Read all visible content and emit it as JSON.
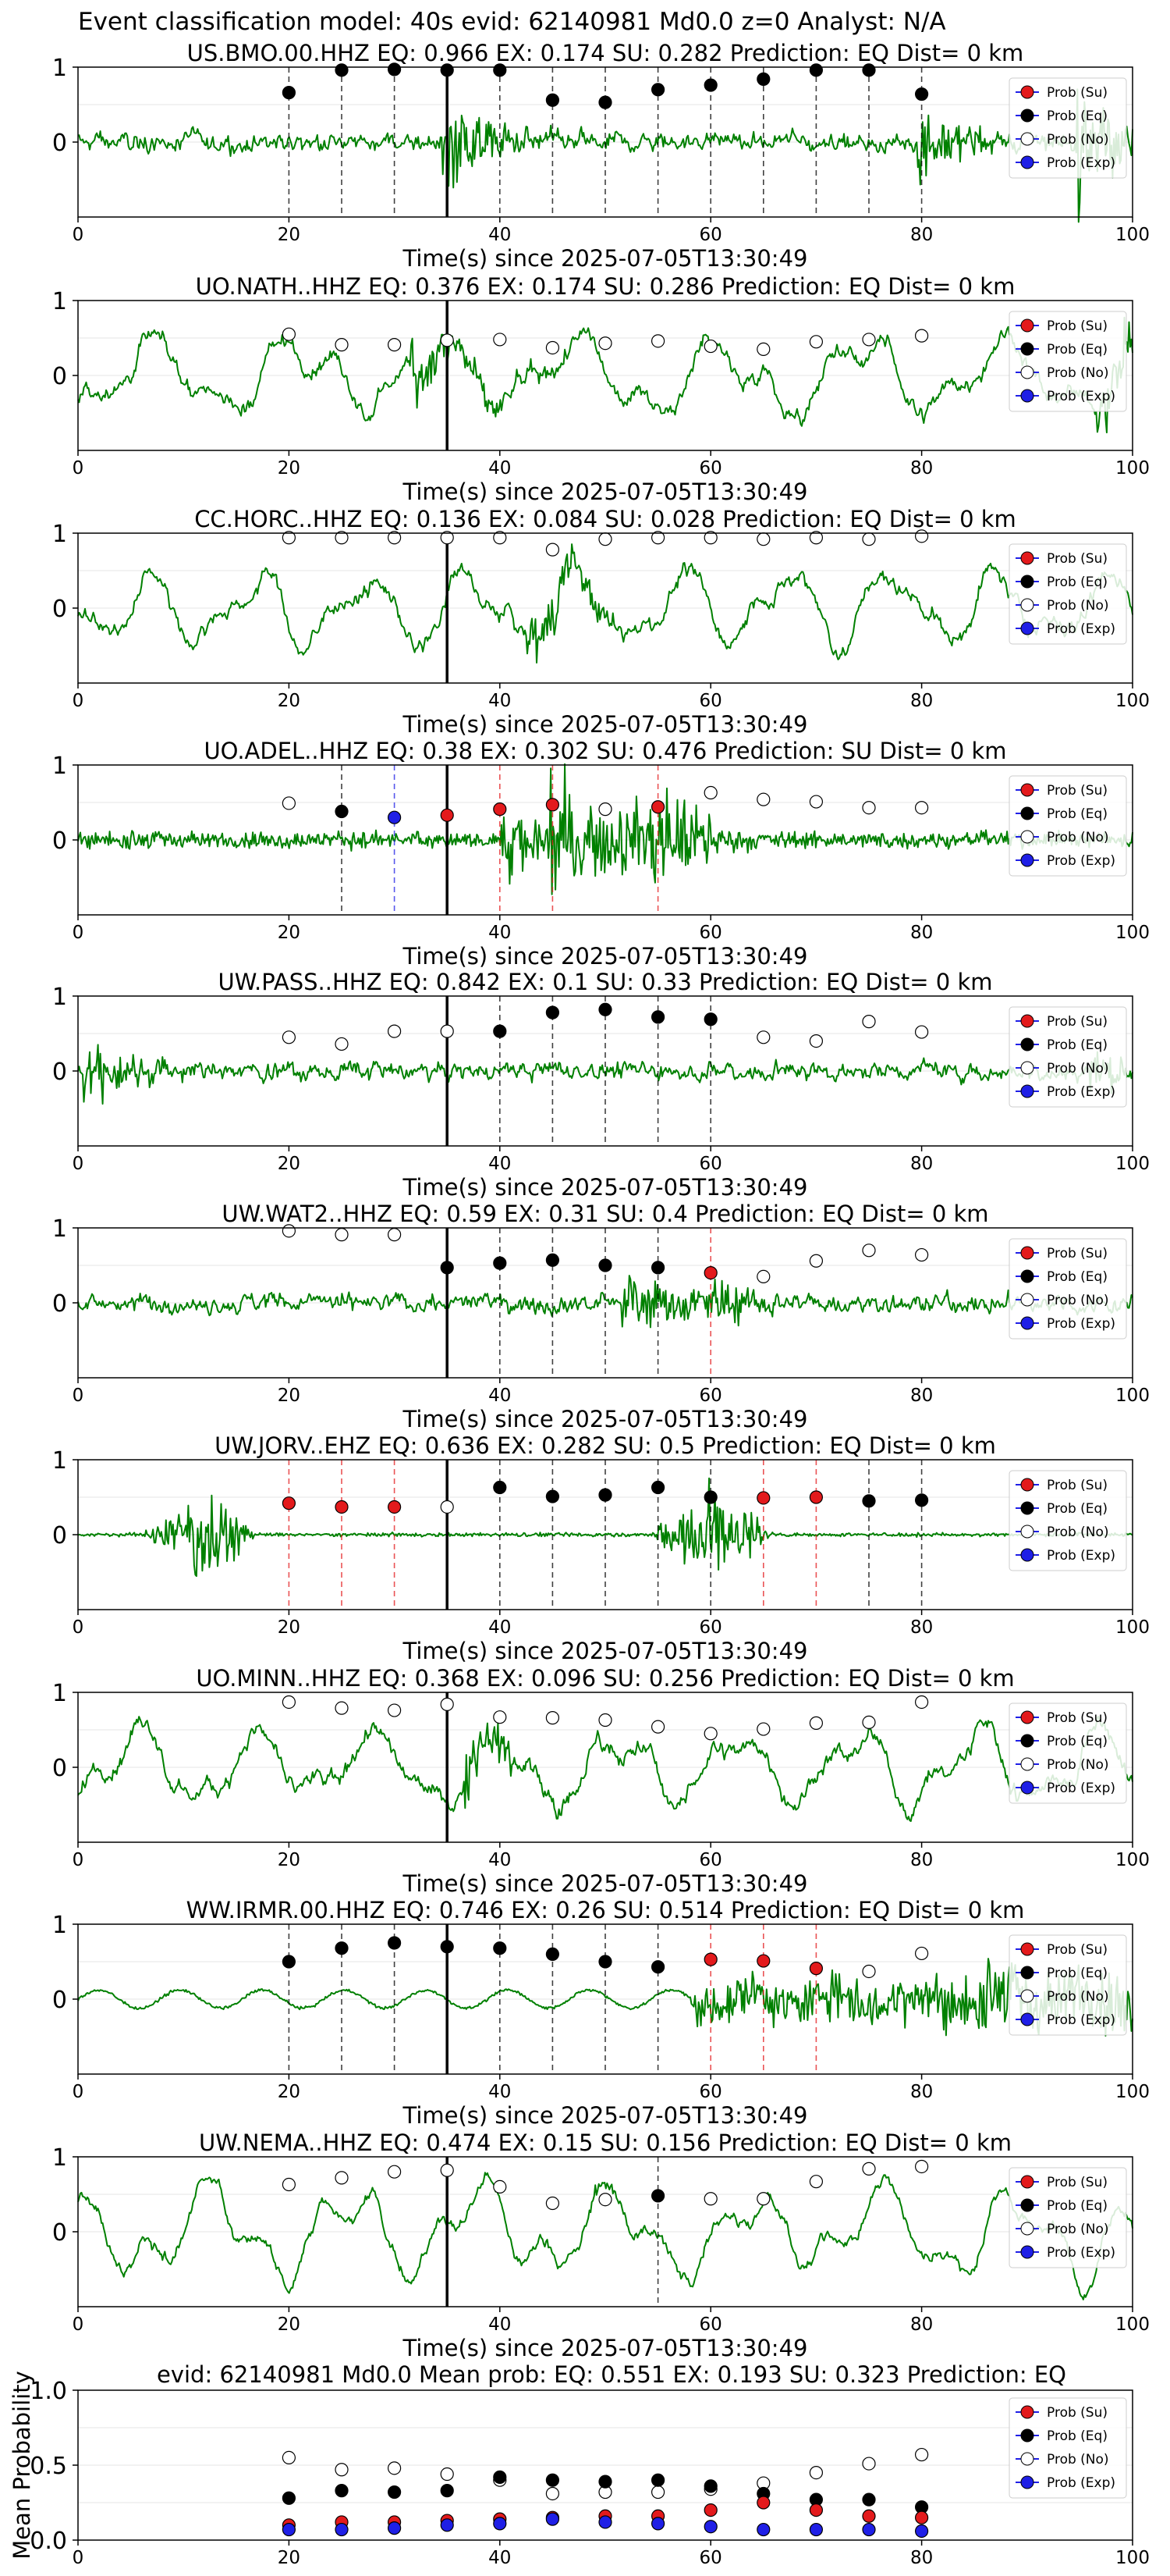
{
  "header": "Event classification model: 40s evid: 62140981 Md0.0 z=0 Analyst: N/A",
  "xlabel": "Time(s) since 2025-07-05T13:30:49",
  "legend": [
    "Prob (Su)",
    "Prob (Eq)",
    "Prob (No)",
    "Prob (Exp)"
  ],
  "colors": {
    "waveform": "#008000",
    "su": "#e31a1c",
    "eq": "#000000",
    "no": "#ffffff",
    "exp": "#1f1fe6",
    "origin_line": "#000000"
  },
  "chart_data": [
    {
      "type": "line",
      "title": "US.BMO.00.HHZ   EQ: 0.966  EX: 0.174  SU: 0.282   Prediction: EQ    Dist= 0 km",
      "xlim": [
        0,
        100
      ],
      "ylim": [
        -1,
        1
      ],
      "xticks": [
        0,
        20,
        40,
        60,
        80,
        100
      ],
      "yticks": [
        0,
        1
      ],
      "origin_time": 35,
      "waveform_style": "noisy",
      "waveform_bursts": [
        [
          35,
          0.9
        ],
        [
          80,
          0.8
        ],
        [
          95,
          1.2
        ]
      ],
      "prob_points": [
        {
          "x": 20,
          "y": 0.66,
          "cls": "eq"
        },
        {
          "x": 25,
          "y": 0.96,
          "cls": "eq"
        },
        {
          "x": 30,
          "y": 0.97,
          "cls": "eq"
        },
        {
          "x": 35,
          "y": 0.96,
          "cls": "eq"
        },
        {
          "x": 40,
          "y": 0.96,
          "cls": "eq"
        },
        {
          "x": 45,
          "y": 0.56,
          "cls": "eq"
        },
        {
          "x": 50,
          "y": 0.53,
          "cls": "eq"
        },
        {
          "x": 55,
          "y": 0.7,
          "cls": "eq"
        },
        {
          "x": 60,
          "y": 0.76,
          "cls": "eq"
        },
        {
          "x": 65,
          "y": 0.84,
          "cls": "eq"
        },
        {
          "x": 70,
          "y": 0.96,
          "cls": "eq"
        },
        {
          "x": 75,
          "y": 0.96,
          "cls": "eq"
        },
        {
          "x": 80,
          "y": 0.64,
          "cls": "eq"
        }
      ]
    },
    {
      "type": "line",
      "title": "UO.NATH..HHZ   EQ: 0.376  EX: 0.174  SU: 0.286   Prediction: EQ    Dist= 0 km",
      "xlim": [
        0,
        100
      ],
      "ylim": [
        -1,
        1
      ],
      "xticks": [
        0,
        20,
        40,
        60,
        80,
        100
      ],
      "yticks": [
        0,
        1
      ],
      "origin_time": 35,
      "waveform_style": "oscillating",
      "waveform_bursts": [
        [
          32,
          0.9
        ],
        [
          97,
          0.8
        ]
      ],
      "prob_points": [
        {
          "x": 20,
          "y": 0.55,
          "cls": "no"
        },
        {
          "x": 25,
          "y": 0.41,
          "cls": "no"
        },
        {
          "x": 30,
          "y": 0.41,
          "cls": "no"
        },
        {
          "x": 35,
          "y": 0.47,
          "cls": "no"
        },
        {
          "x": 40,
          "y": 0.48,
          "cls": "no"
        },
        {
          "x": 45,
          "y": 0.37,
          "cls": "no"
        },
        {
          "x": 50,
          "y": 0.43,
          "cls": "no"
        },
        {
          "x": 55,
          "y": 0.46,
          "cls": "no"
        },
        {
          "x": 60,
          "y": 0.39,
          "cls": "no"
        },
        {
          "x": 65,
          "y": 0.35,
          "cls": "no"
        },
        {
          "x": 70,
          "y": 0.45,
          "cls": "no"
        },
        {
          "x": 75,
          "y": 0.48,
          "cls": "no"
        },
        {
          "x": 80,
          "y": 0.53,
          "cls": "no"
        }
      ]
    },
    {
      "type": "line",
      "title": "CC.HORC..HHZ   EQ: 0.136  EX: 0.084  SU: 0.028   Prediction: EQ    Dist= 0 km",
      "xlim": [
        0,
        100
      ],
      "ylim": [
        -1,
        1
      ],
      "xticks": [
        0,
        20,
        40,
        60,
        80,
        100
      ],
      "yticks": [
        0,
        1
      ],
      "origin_time": 35,
      "waveform_style": "oscillating",
      "waveform_bursts": [
        [
          43,
          0.8
        ]
      ],
      "prob_points": [
        {
          "x": 20,
          "y": 0.94,
          "cls": "no"
        },
        {
          "x": 25,
          "y": 0.94,
          "cls": "no"
        },
        {
          "x": 30,
          "y": 0.94,
          "cls": "no"
        },
        {
          "x": 35,
          "y": 0.94,
          "cls": "no"
        },
        {
          "x": 40,
          "y": 0.94,
          "cls": "no"
        },
        {
          "x": 45,
          "y": 0.78,
          "cls": "no"
        },
        {
          "x": 50,
          "y": 0.92,
          "cls": "no"
        },
        {
          "x": 55,
          "y": 0.94,
          "cls": "no"
        },
        {
          "x": 60,
          "y": 0.94,
          "cls": "no"
        },
        {
          "x": 65,
          "y": 0.92,
          "cls": "no"
        },
        {
          "x": 70,
          "y": 0.94,
          "cls": "no"
        },
        {
          "x": 75,
          "y": 0.92,
          "cls": "no"
        },
        {
          "x": 80,
          "y": 0.96,
          "cls": "no"
        }
      ]
    },
    {
      "type": "line",
      "title": "UO.ADEL..HHZ   EQ: 0.38  EX: 0.302  SU: 0.476   Prediction: SU    Dist= 0 km",
      "xlim": [
        0,
        100
      ],
      "ylim": [
        -1,
        1
      ],
      "xticks": [
        0,
        20,
        40,
        60,
        80,
        100
      ],
      "yticks": [
        0,
        1
      ],
      "origin_time": 35,
      "waveform_style": "burst",
      "waveform_bursts": [
        [
          45,
          1.1
        ],
        [
          55,
          0.7
        ]
      ],
      "prob_points": [
        {
          "x": 20,
          "y": 0.49,
          "cls": "no"
        },
        {
          "x": 25,
          "y": 0.38,
          "cls": "eq"
        },
        {
          "x": 30,
          "y": 0.3,
          "cls": "exp"
        },
        {
          "x": 35,
          "y": 0.33,
          "cls": "su"
        },
        {
          "x": 40,
          "y": 0.41,
          "cls": "su"
        },
        {
          "x": 45,
          "y": 0.47,
          "cls": "su"
        },
        {
          "x": 50,
          "y": 0.41,
          "cls": "no"
        },
        {
          "x": 55,
          "y": 0.44,
          "cls": "su"
        },
        {
          "x": 60,
          "y": 0.63,
          "cls": "no"
        },
        {
          "x": 65,
          "y": 0.54,
          "cls": "no"
        },
        {
          "x": 70,
          "y": 0.51,
          "cls": "no"
        },
        {
          "x": 75,
          "y": 0.43,
          "cls": "no"
        },
        {
          "x": 80,
          "y": 0.43,
          "cls": "no"
        }
      ]
    },
    {
      "type": "line",
      "title": "UW.PASS..HHZ   EQ: 0.842  EX: 0.1  SU: 0.33   Prediction: EQ    Dist= 0 km",
      "xlim": [
        0,
        100
      ],
      "ylim": [
        -1,
        1
      ],
      "xticks": [
        0,
        20,
        40,
        60,
        80,
        100
      ],
      "yticks": [
        0,
        1
      ],
      "origin_time": 35,
      "waveform_style": "noisy",
      "waveform_bursts": [
        [
          1,
          0.7
        ],
        [
          96,
          0.4
        ]
      ],
      "prob_points": [
        {
          "x": 20,
          "y": 0.45,
          "cls": "no"
        },
        {
          "x": 25,
          "y": 0.36,
          "cls": "no"
        },
        {
          "x": 30,
          "y": 0.53,
          "cls": "no"
        },
        {
          "x": 35,
          "y": 0.53,
          "cls": "no"
        },
        {
          "x": 40,
          "y": 0.53,
          "cls": "eq"
        },
        {
          "x": 45,
          "y": 0.78,
          "cls": "eq"
        },
        {
          "x": 50,
          "y": 0.82,
          "cls": "eq"
        },
        {
          "x": 55,
          "y": 0.72,
          "cls": "eq"
        },
        {
          "x": 60,
          "y": 0.69,
          "cls": "eq"
        },
        {
          "x": 65,
          "y": 0.45,
          "cls": "no"
        },
        {
          "x": 70,
          "y": 0.4,
          "cls": "no"
        },
        {
          "x": 75,
          "y": 0.66,
          "cls": "no"
        },
        {
          "x": 80,
          "y": 0.52,
          "cls": "no"
        }
      ]
    },
    {
      "type": "line",
      "title": "UW.WAT2..HHZ   EQ: 0.59  EX: 0.31  SU: 0.4   Prediction: EQ    Dist= 0 km",
      "xlim": [
        0,
        100
      ],
      "ylim": [
        -1,
        1
      ],
      "xticks": [
        0,
        20,
        40,
        60,
        80,
        100
      ],
      "yticks": [
        0,
        1
      ],
      "origin_time": 35,
      "waveform_style": "noisy",
      "waveform_bursts": [
        [
          52,
          0.9
        ],
        [
          60,
          0.5
        ]
      ],
      "prob_points": [
        {
          "x": 20,
          "y": 0.96,
          "cls": "no"
        },
        {
          "x": 25,
          "y": 0.91,
          "cls": "no"
        },
        {
          "x": 30,
          "y": 0.91,
          "cls": "no"
        },
        {
          "x": 35,
          "y": 0.47,
          "cls": "eq"
        },
        {
          "x": 40,
          "y": 0.53,
          "cls": "eq"
        },
        {
          "x": 45,
          "y": 0.57,
          "cls": "eq"
        },
        {
          "x": 50,
          "y": 0.5,
          "cls": "eq"
        },
        {
          "x": 55,
          "y": 0.47,
          "cls": "eq"
        },
        {
          "x": 60,
          "y": 0.4,
          "cls": "su"
        },
        {
          "x": 65,
          "y": 0.35,
          "cls": "no"
        },
        {
          "x": 70,
          "y": 0.56,
          "cls": "no"
        },
        {
          "x": 75,
          "y": 0.7,
          "cls": "no"
        },
        {
          "x": 80,
          "y": 0.64,
          "cls": "no"
        }
      ]
    },
    {
      "type": "line",
      "title": "UW.JORV..EHZ   EQ: 0.636  EX: 0.282  SU: 0.5   Prediction: EQ    Dist= 0 km",
      "xlim": [
        0,
        100
      ],
      "ylim": [
        -1,
        1
      ],
      "xticks": [
        0,
        20,
        40,
        60,
        80,
        100
      ],
      "yticks": [
        0,
        1
      ],
      "origin_time": 35,
      "waveform_style": "quiet",
      "waveform_bursts": [
        [
          12,
          0.8
        ],
        [
          59,
          0.9
        ]
      ],
      "prob_points": [
        {
          "x": 20,
          "y": 0.42,
          "cls": "su"
        },
        {
          "x": 25,
          "y": 0.37,
          "cls": "su"
        },
        {
          "x": 30,
          "y": 0.37,
          "cls": "su"
        },
        {
          "x": 35,
          "y": 0.37,
          "cls": "no"
        },
        {
          "x": 40,
          "y": 0.63,
          "cls": "eq"
        },
        {
          "x": 45,
          "y": 0.51,
          "cls": "eq"
        },
        {
          "x": 50,
          "y": 0.53,
          "cls": "eq"
        },
        {
          "x": 55,
          "y": 0.63,
          "cls": "eq"
        },
        {
          "x": 60,
          "y": 0.5,
          "cls": "eq"
        },
        {
          "x": 65,
          "y": 0.49,
          "cls": "su"
        },
        {
          "x": 70,
          "y": 0.5,
          "cls": "su"
        },
        {
          "x": 75,
          "y": 0.45,
          "cls": "eq"
        },
        {
          "x": 80,
          "y": 0.46,
          "cls": "eq"
        }
      ]
    },
    {
      "type": "line",
      "title": "UO.MINN..HHZ   EQ: 0.368  EX: 0.096  SU: 0.256   Prediction: EQ    Dist= 0 km",
      "xlim": [
        0,
        100
      ],
      "ylim": [
        -1,
        1
      ],
      "xticks": [
        0,
        20,
        40,
        60,
        80,
        100
      ],
      "yticks": [
        0,
        1
      ],
      "origin_time": 35,
      "waveform_style": "oscillating",
      "waveform_bursts": [
        [
          37,
          0.7
        ]
      ],
      "prob_points": [
        {
          "x": 20,
          "y": 0.87,
          "cls": "no"
        },
        {
          "x": 25,
          "y": 0.79,
          "cls": "no"
        },
        {
          "x": 30,
          "y": 0.76,
          "cls": "no"
        },
        {
          "x": 35,
          "y": 0.84,
          "cls": "no"
        },
        {
          "x": 40,
          "y": 0.67,
          "cls": "no"
        },
        {
          "x": 45,
          "y": 0.66,
          "cls": "no"
        },
        {
          "x": 50,
          "y": 0.63,
          "cls": "no"
        },
        {
          "x": 55,
          "y": 0.54,
          "cls": "no"
        },
        {
          "x": 60,
          "y": 0.45,
          "cls": "no"
        },
        {
          "x": 65,
          "y": 0.51,
          "cls": "no"
        },
        {
          "x": 70,
          "y": 0.59,
          "cls": "no"
        },
        {
          "x": 75,
          "y": 0.6,
          "cls": "no"
        },
        {
          "x": 80,
          "y": 0.87,
          "cls": "no"
        }
      ]
    },
    {
      "type": "line",
      "title": "WW.IRMR.00.HHZ   EQ: 0.746  EX: 0.26  SU: 0.514   Prediction: EQ    Dist= 0 km",
      "xlim": [
        0,
        100
      ],
      "ylim": [
        -1,
        1
      ],
      "xticks": [
        0,
        20,
        40,
        60,
        80,
        100
      ],
      "yticks": [
        0,
        1
      ],
      "origin_time": 35,
      "waveform_style": "rising",
      "waveform_bursts": [
        [
          60,
          0.7
        ],
        [
          90,
          1.0
        ]
      ],
      "prob_points": [
        {
          "x": 20,
          "y": 0.5,
          "cls": "eq"
        },
        {
          "x": 25,
          "y": 0.68,
          "cls": "eq"
        },
        {
          "x": 30,
          "y": 0.75,
          "cls": "eq"
        },
        {
          "x": 35,
          "y": 0.7,
          "cls": "eq"
        },
        {
          "x": 40,
          "y": 0.68,
          "cls": "eq"
        },
        {
          "x": 45,
          "y": 0.6,
          "cls": "eq"
        },
        {
          "x": 50,
          "y": 0.5,
          "cls": "eq"
        },
        {
          "x": 55,
          "y": 0.43,
          "cls": "eq"
        },
        {
          "x": 60,
          "y": 0.53,
          "cls": "su"
        },
        {
          "x": 65,
          "y": 0.51,
          "cls": "su"
        },
        {
          "x": 70,
          "y": 0.41,
          "cls": "su"
        },
        {
          "x": 75,
          "y": 0.37,
          "cls": "no"
        },
        {
          "x": 80,
          "y": 0.61,
          "cls": "no"
        }
      ]
    },
    {
      "type": "line",
      "title": "UW.NEMA..HHZ   EQ: 0.474  EX: 0.15  SU: 0.156   Prediction: EQ    Dist= 0 km",
      "xlim": [
        0,
        100
      ],
      "ylim": [
        -1,
        1
      ],
      "xticks": [
        0,
        20,
        40,
        60,
        80,
        100
      ],
      "yticks": [
        0,
        1
      ],
      "origin_time": 35,
      "waveform_style": "smooth",
      "waveform_bursts": [
        [
          49,
          0.4
        ]
      ],
      "prob_points": [
        {
          "x": 20,
          "y": 0.63,
          "cls": "no"
        },
        {
          "x": 25,
          "y": 0.72,
          "cls": "no"
        },
        {
          "x": 30,
          "y": 0.8,
          "cls": "no"
        },
        {
          "x": 35,
          "y": 0.82,
          "cls": "no"
        },
        {
          "x": 40,
          "y": 0.6,
          "cls": "no"
        },
        {
          "x": 45,
          "y": 0.38,
          "cls": "no"
        },
        {
          "x": 50,
          "y": 0.43,
          "cls": "no"
        },
        {
          "x": 55,
          "y": 0.48,
          "cls": "eq"
        },
        {
          "x": 60,
          "y": 0.44,
          "cls": "no"
        },
        {
          "x": 65,
          "y": 0.44,
          "cls": "no"
        },
        {
          "x": 70,
          "y": 0.67,
          "cls": "no"
        },
        {
          "x": 75,
          "y": 0.84,
          "cls": "no"
        },
        {
          "x": 80,
          "y": 0.87,
          "cls": "no"
        }
      ]
    },
    {
      "type": "scatter",
      "title": "evid: 62140981  Md0.0   Mean prob:   EQ: 0.551  EX: 0.193  SU: 0.323   Prediction: EQ",
      "ylabel": "Mean Probability",
      "xlim": [
        0,
        100
      ],
      "ylim": [
        0,
        1
      ],
      "xticks": [
        0,
        20,
        40,
        60,
        80,
        100
      ],
      "yticks": [
        0.0,
        0.5,
        1.0
      ],
      "ytick_labels": [
        "0.0",
        "0.5",
        "1.0"
      ],
      "x": [
        20,
        25,
        30,
        35,
        40,
        45,
        50,
        55,
        60,
        65,
        70,
        75,
        80
      ],
      "series": [
        {
          "name": "Prob (No)",
          "cls": "no",
          "values": [
            0.55,
            0.47,
            0.48,
            0.44,
            0.4,
            0.31,
            0.32,
            0.32,
            0.34,
            0.38,
            0.45,
            0.51,
            0.57
          ]
        },
        {
          "name": "Prob (Eq)",
          "cls": "eq",
          "values": [
            0.28,
            0.33,
            0.32,
            0.33,
            0.42,
            0.4,
            0.39,
            0.4,
            0.36,
            0.31,
            0.27,
            0.27,
            0.22
          ]
        },
        {
          "name": "Prob (Su)",
          "cls": "su",
          "values": [
            0.1,
            0.12,
            0.12,
            0.13,
            0.14,
            0.15,
            0.16,
            0.16,
            0.2,
            0.25,
            0.2,
            0.16,
            0.15
          ]
        },
        {
          "name": "Prob (Exp)",
          "cls": "exp",
          "values": [
            0.07,
            0.07,
            0.08,
            0.1,
            0.11,
            0.14,
            0.12,
            0.11,
            0.09,
            0.07,
            0.07,
            0.07,
            0.06
          ]
        }
      ]
    }
  ]
}
